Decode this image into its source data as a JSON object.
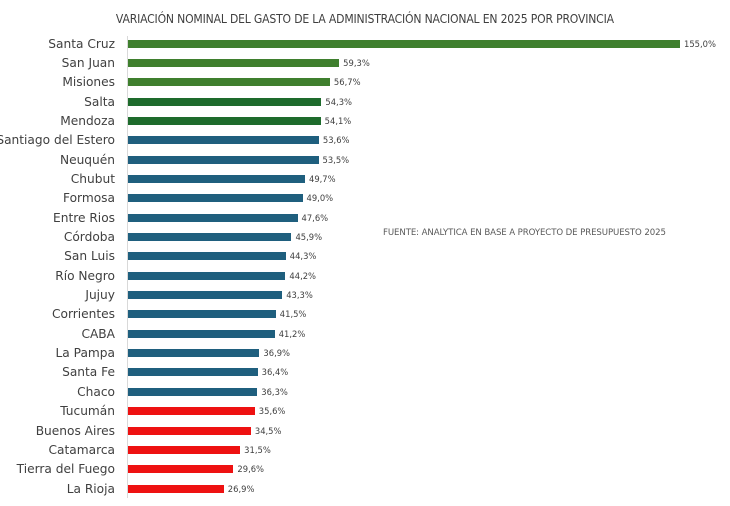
{
  "chart_data": {
    "type": "bar",
    "orientation": "horizontal",
    "title": "VARIACIÓN NOMINAL DEL GASTO DE LA ADMINISTRACIÓN NACIONAL EN 2025 POR PROVINCIA",
    "xlabel": "",
    "ylabel": "",
    "grid": false,
    "legend": null,
    "annotation": "FUENTE: ANALYTICA EN BASE A PROYECTO DE PRESUPUESTO 2025",
    "categories": [
      "Santa Cruz",
      "San Juan",
      "Misiones",
      "Salta",
      "Mendoza",
      "Santiago del Estero",
      "Neuquén",
      "Chubut",
      "Formosa",
      "Entre Rios",
      "Córdoba",
      "San Luis",
      "Río Negro",
      "Jujuy",
      "Corrientes",
      "CABA",
      "La Pampa",
      "Santa Fe",
      "Chaco",
      "Tucumán",
      "Buenos Aires",
      "Catamarca",
      "Tierra del Fuego",
      "La Rioja"
    ],
    "values": [
      155.0,
      59.3,
      56.7,
      54.3,
      54.1,
      53.6,
      53.5,
      49.7,
      49.0,
      47.6,
      45.9,
      44.3,
      44.2,
      43.3,
      41.5,
      41.2,
      36.9,
      36.4,
      36.3,
      35.6,
      34.5,
      31.5,
      29.6,
      26.9
    ],
    "value_labels": [
      "155,0%",
      "59,3%",
      "56,7%",
      "54,3%",
      "54,1%",
      "53,6%",
      "53,5%",
      "49,7%",
      "49,0%",
      "47,6%",
      "45,9%",
      "44,3%",
      "44,2%",
      "43,3%",
      "41,5%",
      "41,2%",
      "36,9%",
      "36,4%",
      "36,3%",
      "35,6%",
      "34,5%",
      "31,5%",
      "29,6%",
      "26,9%"
    ],
    "bar_colors": [
      "#3f7f2e",
      "#3f7f2e",
      "#3f7f2e",
      "#1e6b2c",
      "#1e6b2c",
      "#1f5f7e",
      "#1f5f7e",
      "#1f5f7e",
      "#1f5f7e",
      "#1f5f7e",
      "#1f5f7e",
      "#1f5f7e",
      "#1f5f7e",
      "#1f5f7e",
      "#1f5f7e",
      "#1f5f7e",
      "#1f5f7e",
      "#1f5f7e",
      "#1f5f7e",
      "#ee1111",
      "#ee1111",
      "#ee1111",
      "#ee1111",
      "#ee1111"
    ],
    "xlim": [
      0,
      155
    ]
  }
}
